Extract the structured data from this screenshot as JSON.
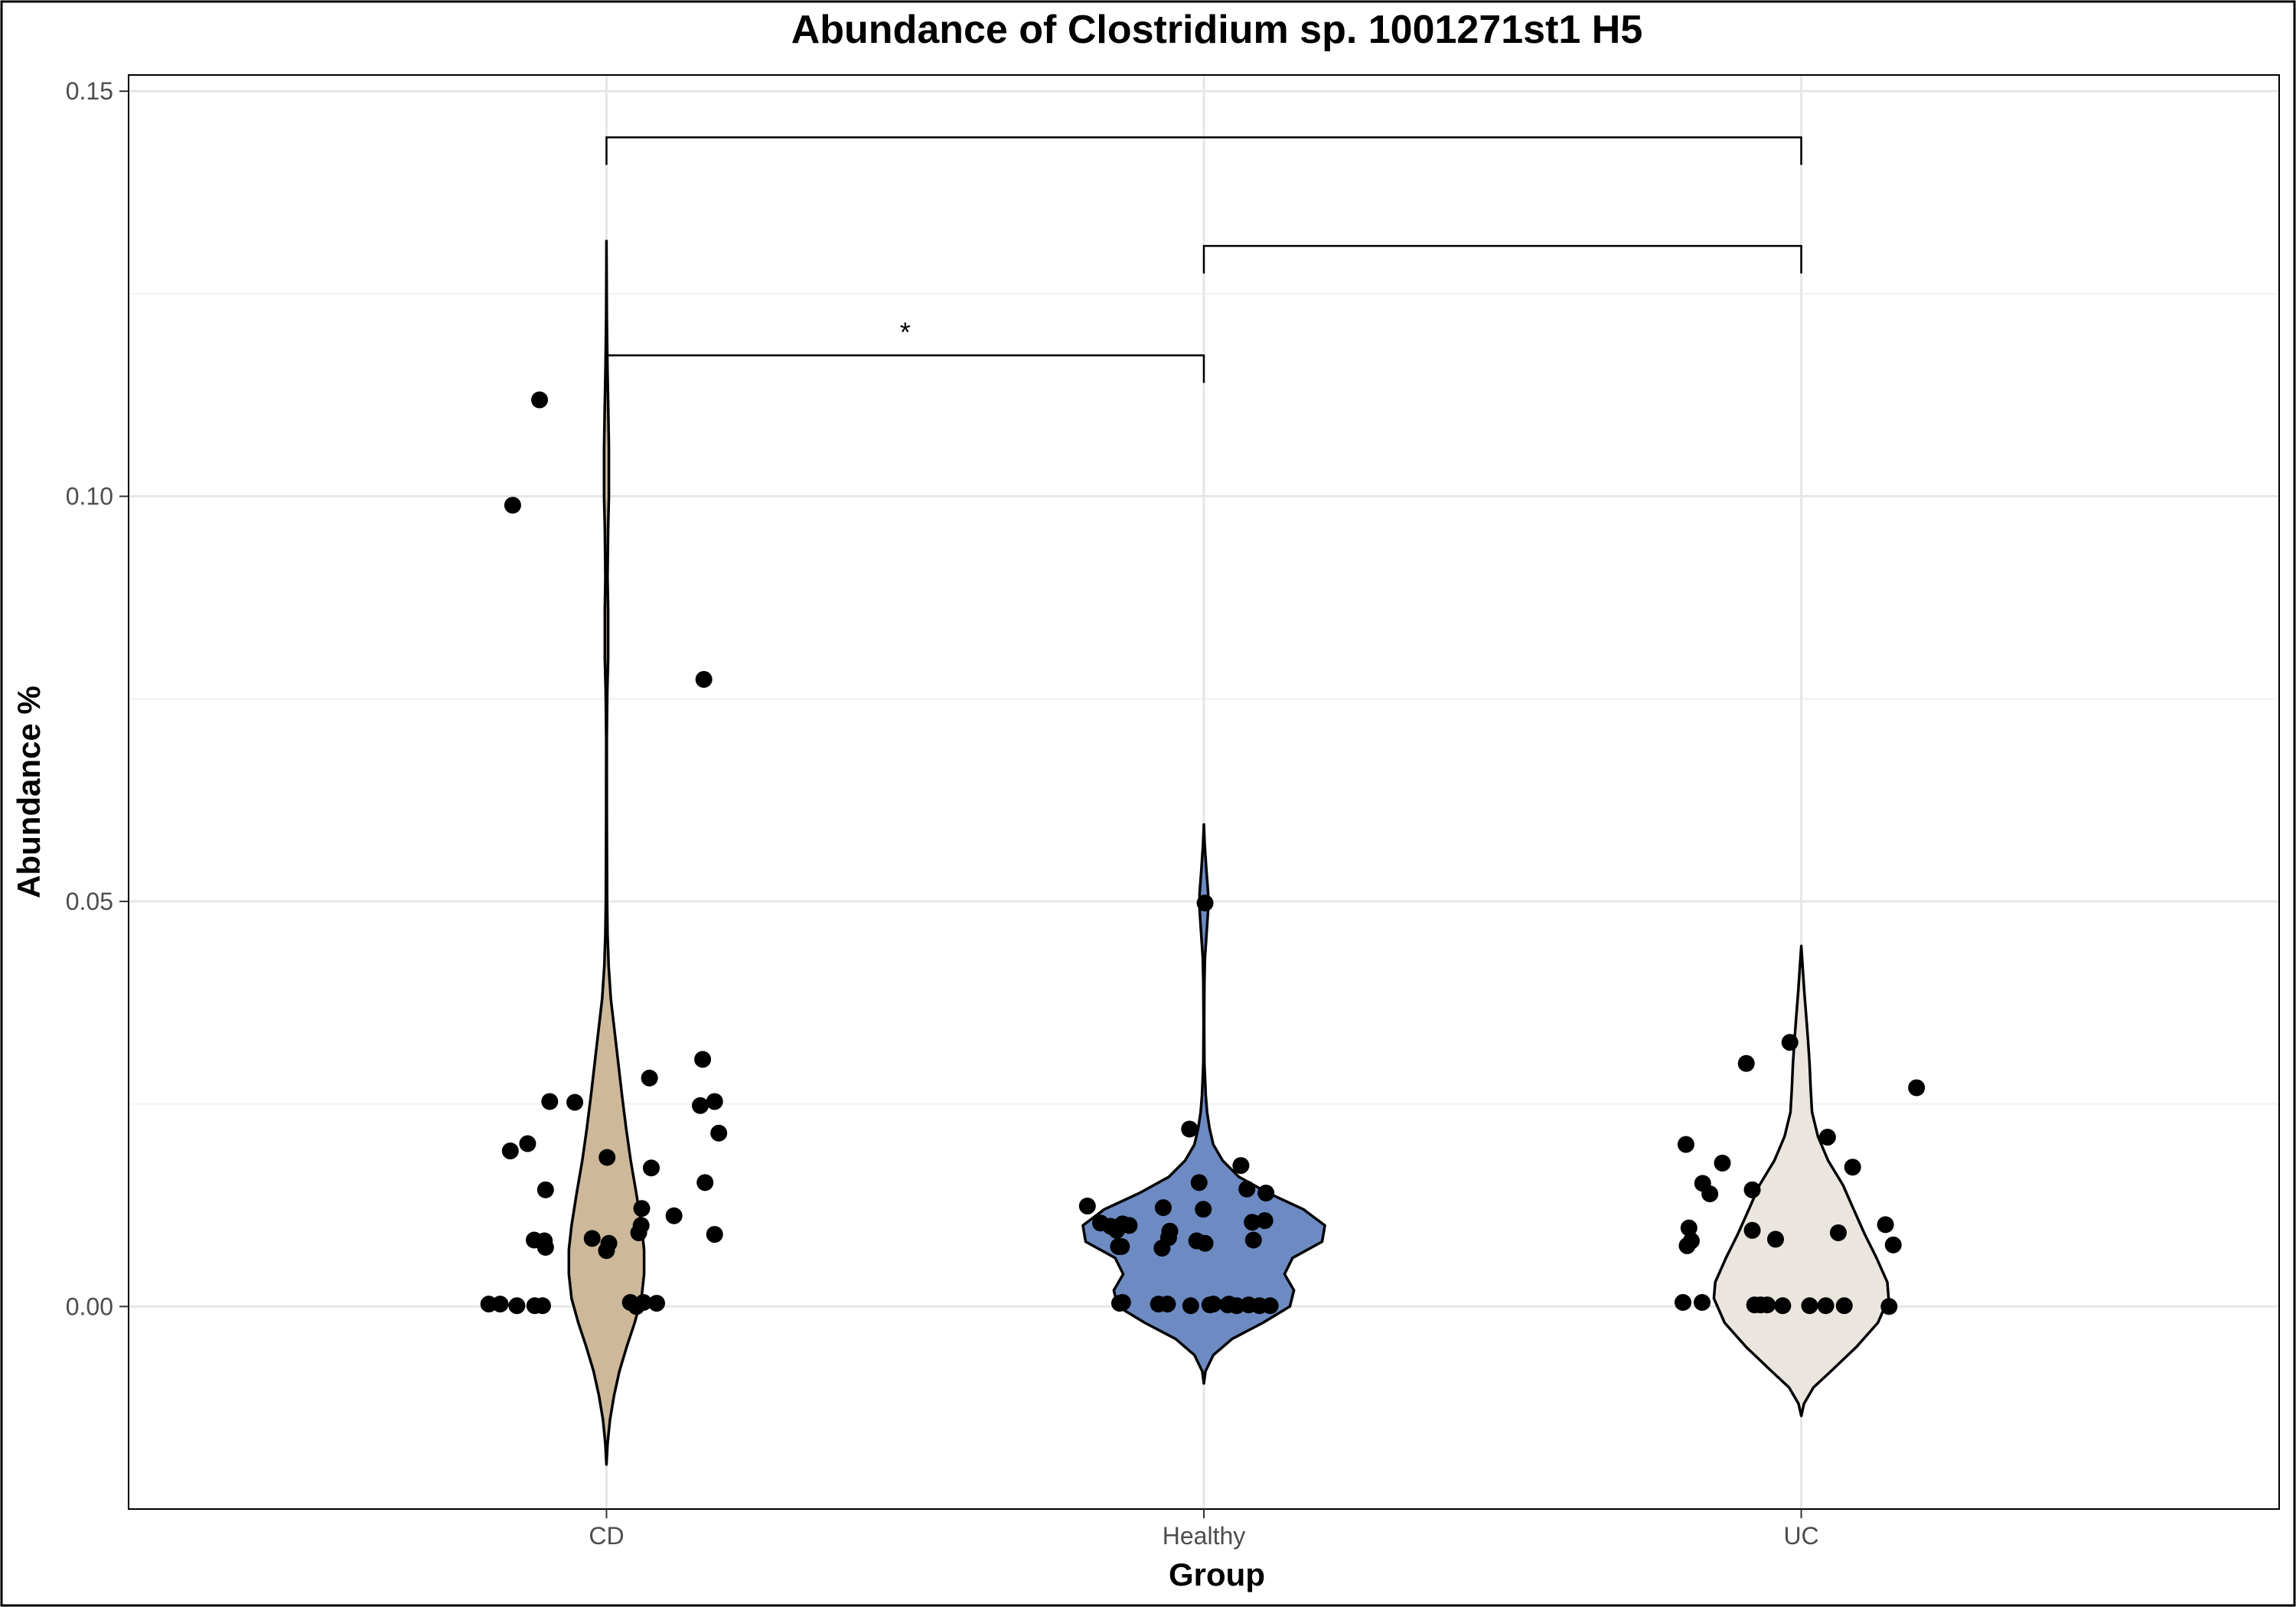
{
  "chart_data": {
    "type": "violin",
    "title": "Abundance of Clostridium sp. 1001271st1 H5",
    "xlabel": "Group",
    "ylabel": "Abundance %",
    "categories": [
      "CD",
      "Healthy",
      "UC"
    ],
    "colors": {
      "CD": "#cdb99a",
      "Healthy": "#6d8bc2",
      "UC": "#eae6df"
    },
    "ylim": [
      -0.025,
      0.152
    ],
    "yticks": [
      0.0,
      0.05,
      0.1,
      0.15
    ],
    "ytick_labels": [
      "0.00",
      "0.05",
      "0.10",
      "0.15"
    ],
    "grid": true,
    "violins": [
      {
        "group": "CD",
        "profile": [
          [
            -0.0195,
            0.0
          ],
          [
            -0.017,
            0.004
          ],
          [
            -0.014,
            0.013
          ],
          [
            -0.011,
            0.028
          ],
          [
            -0.008,
            0.048
          ],
          [
            -0.005,
            0.075
          ],
          [
            -0.002,
            0.105
          ],
          [
            0.001,
            0.13
          ],
          [
            0.004,
            0.14
          ],
          [
            0.007,
            0.14
          ],
          [
            0.01,
            0.13
          ],
          [
            0.014,
            0.111
          ],
          [
            0.018,
            0.09
          ],
          [
            0.022,
            0.073
          ],
          [
            0.026,
            0.058
          ],
          [
            0.03,
            0.044
          ],
          [
            0.034,
            0.03
          ],
          [
            0.038,
            0.016
          ],
          [
            0.042,
            0.008
          ],
          [
            0.046,
            0.004
          ],
          [
            0.05,
            0.0025
          ],
          [
            0.06,
            0.0012
          ],
          [
            0.07,
            0.001
          ],
          [
            0.076,
            0.003
          ],
          [
            0.08,
            0.006
          ],
          [
            0.086,
            0.006
          ],
          [
            0.09,
            0.004
          ],
          [
            0.096,
            0.006
          ],
          [
            0.1,
            0.009
          ],
          [
            0.106,
            0.009
          ],
          [
            0.11,
            0.007
          ],
          [
            0.116,
            0.0035
          ],
          [
            0.122,
            0.0012
          ],
          [
            0.128,
            0.0005
          ],
          [
            0.1315,
            0.0
          ]
        ]
      },
      {
        "group": "Healthy",
        "profile": [
          [
            -0.0095,
            0.0
          ],
          [
            -0.008,
            0.006
          ],
          [
            -0.006,
            0.035
          ],
          [
            -0.004,
            0.105
          ],
          [
            -0.002,
            0.22
          ],
          [
            0.0,
            0.32
          ],
          [
            0.002,
            0.335
          ],
          [
            0.004,
            0.3
          ],
          [
            0.006,
            0.33
          ],
          [
            0.008,
            0.44
          ],
          [
            0.01,
            0.45
          ],
          [
            0.012,
            0.37
          ],
          [
            0.014,
            0.24
          ],
          [
            0.016,
            0.13
          ],
          [
            0.018,
            0.07
          ],
          [
            0.02,
            0.035
          ],
          [
            0.022,
            0.021
          ],
          [
            0.024,
            0.012
          ],
          [
            0.026,
            0.007
          ],
          [
            0.03,
            0.002
          ],
          [
            0.035,
            0.001
          ],
          [
            0.04,
            0.002
          ],
          [
            0.043,
            0.004
          ],
          [
            0.046,
            0.01
          ],
          [
            0.049,
            0.016
          ],
          [
            0.051,
            0.016
          ],
          [
            0.054,
            0.009
          ],
          [
            0.057,
            0.003
          ],
          [
            0.0595,
            0.0
          ]
        ]
      },
      {
        "group": "UC",
        "profile": [
          [
            -0.0135,
            0.0
          ],
          [
            -0.012,
            0.01
          ],
          [
            -0.01,
            0.045
          ],
          [
            -0.008,
            0.11
          ],
          [
            -0.005,
            0.205
          ],
          [
            -0.002,
            0.285
          ],
          [
            0.001,
            0.325
          ],
          [
            0.003,
            0.32
          ],
          [
            0.006,
            0.28
          ],
          [
            0.009,
            0.235
          ],
          [
            0.012,
            0.195
          ],
          [
            0.015,
            0.155
          ],
          [
            0.018,
            0.1
          ],
          [
            0.021,
            0.062
          ],
          [
            0.024,
            0.04
          ],
          [
            0.027,
            0.035
          ],
          [
            0.03,
            0.031
          ],
          [
            0.033,
            0.025
          ],
          [
            0.036,
            0.018
          ],
          [
            0.039,
            0.011
          ],
          [
            0.042,
            0.005
          ],
          [
            0.0445,
            0.0
          ]
        ]
      }
    ],
    "points": [
      {
        "group": "CD",
        "values": [
          0.1119,
          0.0989,
          0.0774,
          0.0305,
          0.0282,
          0.0253,
          0.0252,
          0.0253,
          0.0248,
          0.0214,
          0.0201,
          0.0192,
          0.0184,
          0.0171,
          0.0153,
          0.0144,
          0.0121,
          0.0112,
          0.01,
          0.0091,
          0.0089,
          0.0084,
          0.0082,
          0.0081,
          0.0078,
          0.0073,
          0.0069,
          0.0005,
          0.0005,
          0.0004,
          0.0003,
          0.0003,
          0.0001,
          0.0001,
          0.0001,
          0.0
        ],
        "x_offset": [
          -0.112,
          -0.157,
          0.163,
          0.161,
          0.072,
          -0.095,
          -0.053,
          0.181,
          0.157,
          0.188,
          -0.132,
          -0.161,
          0.001,
          0.075,
          0.165,
          -0.102,
          0.059,
          0.113,
          0.058,
          0.054,
          0.181,
          -0.024,
          -0.121,
          -0.104,
          0.004,
          -0.102,
          0.0,
          0.062,
          0.04,
          0.084,
          -0.197,
          -0.178,
          -0.15,
          -0.12,
          -0.107,
          0.05
        ]
      },
      {
        "group": "Healthy",
        "values": [
          0.0498,
          0.0219,
          0.0174,
          0.0153,
          0.0145,
          0.014,
          0.0124,
          0.0122,
          0.012,
          0.0106,
          0.0104,
          0.0103,
          0.0102,
          0.01,
          0.0099,
          0.0094,
          0.0093,
          0.0085,
          0.0082,
          0.0081,
          0.0078,
          0.0074,
          0.0074,
          0.0072,
          0.0005,
          0.0004,
          0.0003,
          0.0003,
          0.0003,
          0.0003,
          0.0002,
          0.0002,
          0.0002,
          0.0001,
          0.0001,
          0.0001,
          0.0001
        ],
        "x_offset": [
          0.002,
          -0.024,
          0.062,
          -0.008,
          0.072,
          0.104,
          -0.195,
          -0.068,
          -0.001,
          0.102,
          0.081,
          -0.173,
          -0.136,
          -0.125,
          -0.156,
          -0.146,
          -0.057,
          -0.059,
          0.083,
          -0.012,
          0.002,
          -0.143,
          -0.138,
          -0.07,
          -0.136,
          -0.141,
          -0.076,
          -0.061,
          0.042,
          0.016,
          0.01,
          0.04,
          0.075,
          0.055,
          0.093,
          0.111,
          -0.022
        ]
      },
      {
        "group": "UC",
        "values": [
          0.0326,
          0.03,
          0.027,
          0.0209,
          0.02,
          0.0177,
          0.0172,
          0.0152,
          0.0144,
          0.0139,
          0.0101,
          0.0097,
          0.0094,
          0.0091,
          0.0083,
          0.0081,
          0.0076,
          0.0075,
          0.0005,
          0.0005,
          0.0002,
          0.0002,
          0.0002,
          0.0001,
          0.0001,
          0.0001,
          0.0001,
          0.0
        ],
        "x_offset": [
          -0.019,
          -0.092,
          0.193,
          0.044,
          -0.193,
          -0.132,
          0.086,
          -0.165,
          -0.082,
          -0.153,
          0.141,
          -0.188,
          -0.082,
          0.062,
          -0.043,
          -0.184,
          0.154,
          -0.191,
          -0.198,
          -0.166,
          -0.078,
          -0.068,
          -0.057,
          -0.031,
          0.014,
          0.041,
          0.072,
          0.147
        ]
      }
    ],
    "significance": [
      {
        "from": "CD",
        "to": "UC",
        "y": 0.1443,
        "label": ""
      },
      {
        "from": "Healthy",
        "to": "UC",
        "y": 0.1309,
        "label": ""
      },
      {
        "from": "CD",
        "to": "Healthy",
        "y": 0.1174,
        "label": "*"
      }
    ]
  }
}
